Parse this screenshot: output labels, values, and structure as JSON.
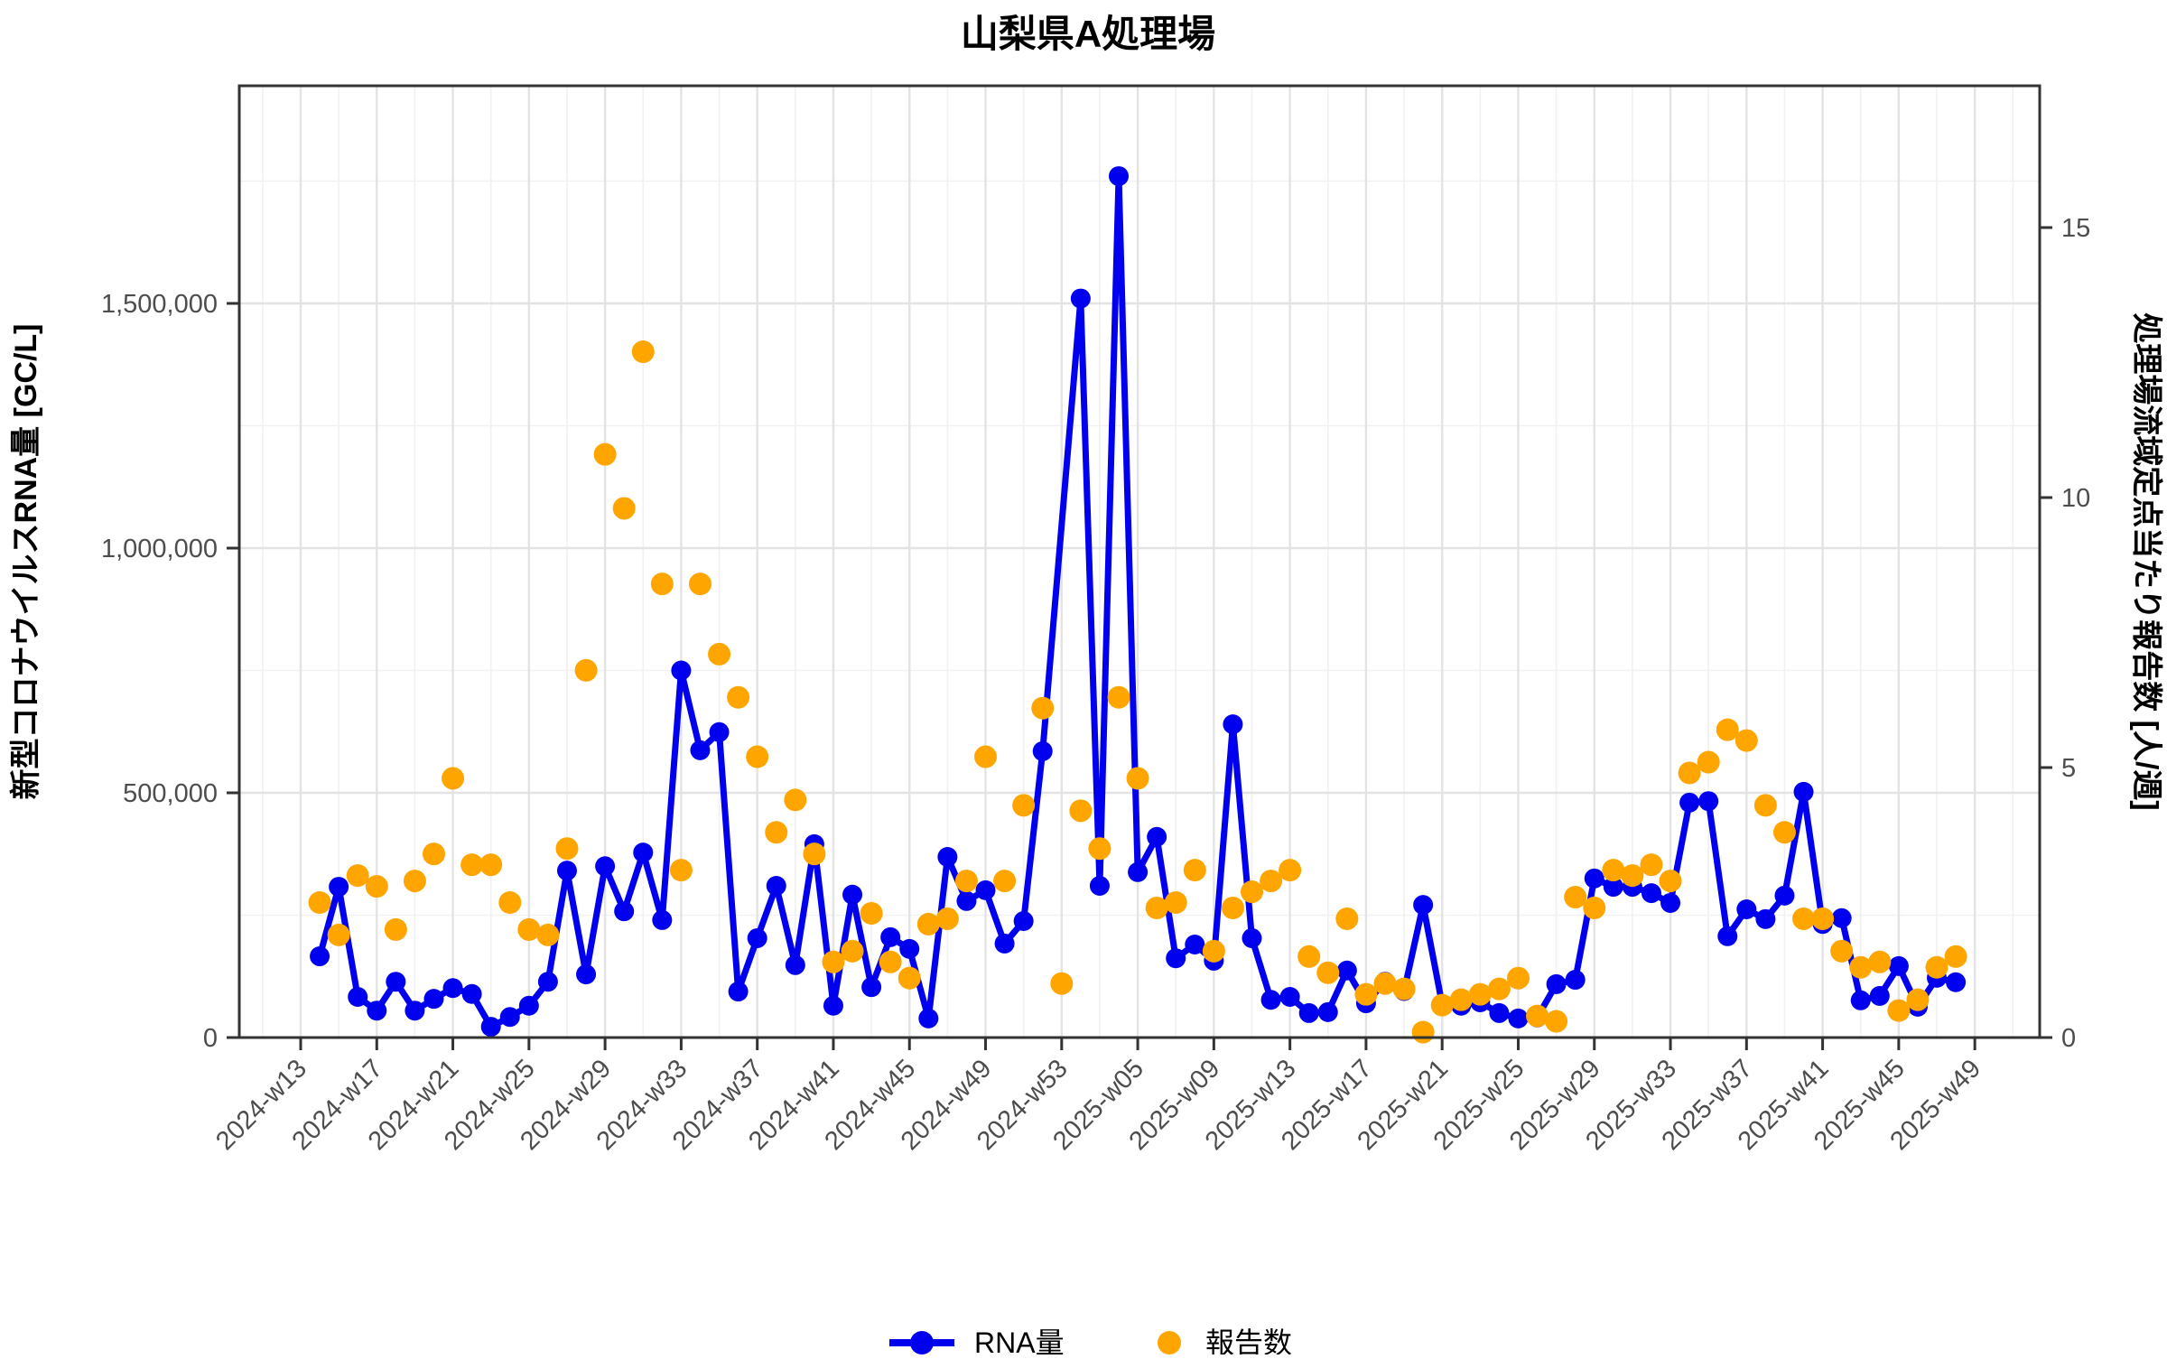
{
  "title": "山梨県A処理場",
  "left_axis": {
    "title": "新型コロナウイルスRNA量 [GC/L]",
    "tick_labels": [
      "0",
      "500,000",
      "1,000,000",
      "1,500,000"
    ],
    "tick_values": [
      0,
      500000,
      1000000,
      1500000
    ]
  },
  "right_axis": {
    "title": "処理場流域定点当たり報告数 [人/週]",
    "tick_labels": [
      "0",
      "5",
      "10",
      "15"
    ],
    "tick_values": [
      0,
      5,
      10,
      15
    ]
  },
  "x_axis": {
    "tick_labels": [
      "2024-w13",
      "2024-w17",
      "2024-w21",
      "2024-w25",
      "2024-w29",
      "2024-w33",
      "2024-w37",
      "2024-w41",
      "2024-w45",
      "2024-w49",
      "2024-w53",
      "2025-w05",
      "2025-w09",
      "2025-w13",
      "2025-w17",
      "2025-w21",
      "2025-w25",
      "2025-w29",
      "2025-w33",
      "2025-w37",
      "2025-w41",
      "2025-w45",
      "2025-w49"
    ]
  },
  "legend": {
    "items": [
      {
        "label": "RNA量",
        "color": "#0000ee",
        "type": "line-dot"
      },
      {
        "label": "報告数",
        "color": "#ffa500",
        "type": "dot"
      }
    ]
  },
  "colors": {
    "rna": "#0000ee",
    "reports": "#ffa500",
    "grid_major": "#e3e3e3",
    "grid_minor": "#f1f1f1",
    "axis": "#333333",
    "tick_text": "#4d4d4d"
  },
  "chart_data": {
    "type": "line",
    "title": "山梨県A処理場",
    "x_label": "",
    "y_left_label": "新型コロナウイルスRNA量 [GC/L]",
    "y_right_label": "処理場流域定点当たり報告数 [人/週]",
    "y_left_range": [
      0,
      1944000
    ],
    "y_right_range": [
      0,
      17.6
    ],
    "grid": true,
    "legend_position": "bottom",
    "series": [
      {
        "name": "RNA量",
        "axis": "left",
        "color": "#0000ee",
        "style": "line-dot",
        "points": [
          [
            "2024-w14",
            166000
          ],
          [
            "2024-w15",
            308000
          ],
          [
            "2024-w16",
            83000
          ],
          [
            "2024-w17",
            55000
          ],
          [
            "2024-w18",
            114000
          ],
          [
            "2024-w19",
            55000
          ],
          [
            "2024-w20",
            79000
          ],
          [
            "2024-w21",
            101000
          ],
          [
            "2024-w22",
            89000
          ],
          [
            "2024-w23",
            22000
          ],
          [
            "2024-w24",
            42000
          ],
          [
            "2024-w25",
            65000
          ],
          [
            "2024-w26",
            114000
          ],
          [
            "2024-w27",
            341000
          ],
          [
            "2024-w28",
            129000
          ],
          [
            "2024-w29",
            350000
          ],
          [
            "2024-w30",
            258000
          ],
          [
            "2024-w31",
            378000
          ],
          [
            "2024-w32",
            240000
          ],
          [
            "2024-w33",
            750000
          ],
          [
            "2024-w34",
            587000
          ],
          [
            "2024-w35",
            624000
          ],
          [
            "2024-w36",
            94000
          ],
          [
            "2024-w37",
            203000
          ],
          [
            "2024-w38",
            310000
          ],
          [
            "2024-w39",
            148000
          ],
          [
            "2024-w40",
            395000
          ],
          [
            "2024-w41",
            65000
          ],
          [
            "2024-w42",
            292000
          ],
          [
            "2024-w43",
            103000
          ],
          [
            "2024-w44",
            205000
          ],
          [
            "2024-w45",
            181000
          ],
          [
            "2024-w46",
            39000
          ],
          [
            "2024-w47",
            369000
          ],
          [
            "2024-w48",
            279000
          ],
          [
            "2024-w49",
            301000
          ],
          [
            "2024-w50",
            192000
          ],
          [
            "2024-w51",
            238000
          ],
          [
            "2024-w52",
            585000
          ],
          [
            "2025-w02",
            1510000
          ],
          [
            "2025-w03",
            310000
          ],
          [
            "2025-w04",
            1760000
          ],
          [
            "2025-w05",
            338000
          ],
          [
            "2025-w06",
            410000
          ],
          [
            "2025-w07",
            162000
          ],
          [
            "2025-w08",
            190000
          ],
          [
            "2025-w09",
            157000
          ],
          [
            "2025-w10",
            640000
          ],
          [
            "2025-w11",
            203000
          ],
          [
            "2025-w12",
            77000
          ],
          [
            "2025-w13",
            83000
          ],
          [
            "2025-w14",
            50000
          ],
          [
            "2025-w15",
            52000
          ],
          [
            "2025-w16",
            137000
          ],
          [
            "2025-w17",
            70000
          ],
          [
            "2025-w18",
            114000
          ],
          [
            "2025-w19",
            95000
          ],
          [
            "2025-w20",
            271000
          ],
          [
            "2025-w21",
            68000
          ],
          [
            "2025-w22",
            65000
          ],
          [
            "2025-w23",
            72000
          ],
          [
            "2025-w24",
            50000
          ],
          [
            "2025-w25",
            39000
          ],
          [
            "2025-w26",
            41000
          ],
          [
            "2025-w27",
            109000
          ],
          [
            "2025-w28",
            118000
          ],
          [
            "2025-w29",
            325000
          ],
          [
            "2025-w30",
            308000
          ],
          [
            "2025-w31",
            308000
          ],
          [
            "2025-w32",
            295000
          ],
          [
            "2025-w33",
            275000
          ],
          [
            "2025-w34",
            480000
          ],
          [
            "2025-w35",
            483000
          ],
          [
            "2025-w36",
            207000
          ],
          [
            "2025-w37",
            262000
          ],
          [
            "2025-w38",
            242000
          ],
          [
            "2025-w39",
            290000
          ],
          [
            "2025-w40",
            502000
          ],
          [
            "2025-w41",
            232000
          ],
          [
            "2025-w42",
            244000
          ],
          [
            "2025-w43",
            76000
          ],
          [
            "2025-w44",
            85000
          ],
          [
            "2025-w45",
            146000
          ],
          [
            "2025-w46",
            63000
          ],
          [
            "2025-w47",
            122000
          ],
          [
            "2025-w48",
            113000
          ]
        ]
      },
      {
        "name": "報告数",
        "axis": "right",
        "color": "#ffa500",
        "style": "dot",
        "points": [
          [
            "2024-w14",
            2.5
          ],
          [
            "2024-w15",
            1.9
          ],
          [
            "2024-w16",
            3.0
          ],
          [
            "2024-w17",
            2.8
          ],
          [
            "2024-w18",
            2.0
          ],
          [
            "2024-w19",
            2.9
          ],
          [
            "2024-w20",
            3.4
          ],
          [
            "2024-w21",
            4.8
          ],
          [
            "2024-w22",
            3.2
          ],
          [
            "2024-w23",
            3.2
          ],
          [
            "2024-w24",
            2.5
          ],
          [
            "2024-w25",
            2.0
          ],
          [
            "2024-w26",
            1.9
          ],
          [
            "2024-w27",
            3.5
          ],
          [
            "2024-w28",
            6.8
          ],
          [
            "2024-w29",
            10.8
          ],
          [
            "2024-w30",
            9.8
          ],
          [
            "2024-w31",
            12.7
          ],
          [
            "2024-w32",
            8.4
          ],
          [
            "2024-w33",
            3.1
          ],
          [
            "2024-w34",
            8.4
          ],
          [
            "2024-w35",
            7.1
          ],
          [
            "2024-w36",
            6.3
          ],
          [
            "2024-w37",
            5.2
          ],
          [
            "2024-w38",
            3.8
          ],
          [
            "2024-w39",
            4.4
          ],
          [
            "2024-w40",
            3.4
          ],
          [
            "2024-w41",
            1.4
          ],
          [
            "2024-w42",
            1.6
          ],
          [
            "2024-w43",
            2.3
          ],
          [
            "2024-w44",
            1.4
          ],
          [
            "2024-w45",
            1.1
          ],
          [
            "2024-w46",
            2.1
          ],
          [
            "2024-w47",
            2.2
          ],
          [
            "2024-w48",
            2.9
          ],
          [
            "2024-w49",
            5.2
          ],
          [
            "2024-w50",
            2.9
          ],
          [
            "2024-w51",
            4.3
          ],
          [
            "2024-w52",
            6.1
          ],
          [
            "2024-w53",
            1.0
          ],
          [
            "2025-w02",
            4.2
          ],
          [
            "2025-w03",
            3.5
          ],
          [
            "2025-w04",
            6.3
          ],
          [
            "2025-w05",
            4.8
          ],
          [
            "2025-w06",
            2.4
          ],
          [
            "2025-w07",
            2.5
          ],
          [
            "2025-w08",
            3.1
          ],
          [
            "2025-w09",
            1.6
          ],
          [
            "2025-w10",
            2.4
          ],
          [
            "2025-w11",
            2.7
          ],
          [
            "2025-w12",
            2.9
          ],
          [
            "2025-w13",
            3.1
          ],
          [
            "2025-w14",
            1.5
          ],
          [
            "2025-w15",
            1.2
          ],
          [
            "2025-w16",
            2.2
          ],
          [
            "2025-w17",
            0.8
          ],
          [
            "2025-w18",
            1.0
          ],
          [
            "2025-w19",
            0.9
          ],
          [
            "2025-w20",
            0.1
          ],
          [
            "2025-w21",
            0.6
          ],
          [
            "2025-w22",
            0.7
          ],
          [
            "2025-w23",
            0.8
          ],
          [
            "2025-w24",
            0.9
          ],
          [
            "2025-w25",
            1.1
          ],
          [
            "2025-w26",
            0.4
          ],
          [
            "2025-w27",
            0.3
          ],
          [
            "2025-w28",
            2.6
          ],
          [
            "2025-w29",
            2.4
          ],
          [
            "2025-w30",
            3.1
          ],
          [
            "2025-w31",
            3.0
          ],
          [
            "2025-w32",
            3.2
          ],
          [
            "2025-w33",
            2.9
          ],
          [
            "2025-w34",
            4.9
          ],
          [
            "2025-w35",
            5.1
          ],
          [
            "2025-w36",
            5.7
          ],
          [
            "2025-w37",
            5.5
          ],
          [
            "2025-w38",
            4.3
          ],
          [
            "2025-w39",
            3.8
          ],
          [
            "2025-w40",
            2.2
          ],
          [
            "2025-w41",
            2.2
          ],
          [
            "2025-w42",
            1.6
          ],
          [
            "2025-w43",
            1.3
          ],
          [
            "2025-w44",
            1.4
          ],
          [
            "2025-w45",
            0.5
          ],
          [
            "2025-w46",
            0.7
          ],
          [
            "2025-w47",
            1.3
          ],
          [
            "2025-w48",
            1.5
          ]
        ]
      }
    ]
  }
}
